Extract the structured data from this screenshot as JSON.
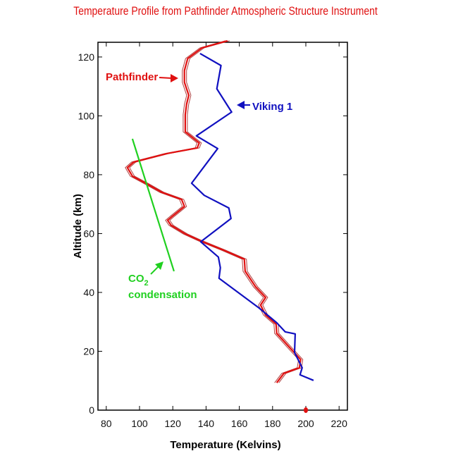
{
  "chart_data": {
    "type": "line",
    "title": "Temperature Profile from Pathfinder Atmospheric Structure Instrument",
    "xlabel": "Temperature (Kelvins)",
    "ylabel": "Altitude (km)",
    "xlim": [
      75,
      225
    ],
    "ylim": [
      0,
      125
    ],
    "xticks": [
      80,
      100,
      120,
      140,
      160,
      180,
      200,
      220
    ],
    "yticks": [
      0,
      20,
      40,
      60,
      80,
      100,
      120
    ],
    "grid": false,
    "series": [
      {
        "name": "Pathfinder",
        "color": "#e01010",
        "points": [
          [
            152.9,
            125.5
          ],
          [
            137.6,
            123.1
          ],
          [
            129,
            119.5
          ],
          [
            127,
            115.4
          ],
          [
            127,
            111.4
          ],
          [
            129.6,
            107
          ],
          [
            128.3,
            104
          ],
          [
            127.5,
            100.4
          ],
          [
            127.5,
            94.6
          ],
          [
            135.9,
            90.8
          ],
          [
            134.7,
            89.1
          ],
          [
            116.4,
            87.2
          ],
          [
            96.5,
            84.3
          ],
          [
            92.7,
            82.4
          ],
          [
            95.7,
            79.5
          ],
          [
            103.7,
            77.1
          ],
          [
            113.5,
            74
          ],
          [
            125.3,
            71.6
          ],
          [
            127,
            69.2
          ],
          [
            119.8,
            65.9
          ],
          [
            116.9,
            64.5
          ],
          [
            119,
            62.8
          ],
          [
            127.5,
            59.9
          ],
          [
            136.8,
            57.5
          ],
          [
            150.3,
            54.4
          ],
          [
            163,
            51.3
          ],
          [
            163.5,
            47.2
          ],
          [
            169.8,
            41.9
          ],
          [
            175.8,
            38.3
          ],
          [
            172.8,
            35.7
          ],
          [
            175.8,
            32.3
          ],
          [
            182.1,
            29.2
          ],
          [
            182.5,
            26.1
          ],
          [
            189.7,
            21.6
          ],
          [
            196.9,
            17.2
          ],
          [
            196.1,
            14.4
          ],
          [
            186.8,
            12.5
          ],
          [
            182.5,
            9.3
          ]
        ]
      },
      {
        "name": "Viking 1",
        "color": "#1010c0",
        "points": [
          [
            136.4,
            121.2
          ],
          [
            149,
            117.1
          ],
          [
            146.5,
            109.2
          ],
          [
            155.4,
            101.3
          ],
          [
            134.2,
            93.2
          ],
          [
            147,
            88.9
          ],
          [
            131.3,
            77.1
          ],
          [
            138.9,
            73
          ],
          [
            153.7,
            68.7
          ],
          [
            155,
            65.1
          ],
          [
            136.8,
            57.2
          ],
          [
            147.4,
            52
          ],
          [
            148.6,
            48.4
          ],
          [
            147.8,
            44.8
          ],
          [
            171.9,
            34.7
          ],
          [
            182.5,
            29.7
          ],
          [
            187.6,
            26.6
          ],
          [
            193.6,
            25.9
          ],
          [
            193.2,
            19.6
          ],
          [
            197.8,
            14.4
          ],
          [
            196.5,
            12
          ],
          [
            204.6,
            10.1
          ]
        ]
      },
      {
        "name": "CO2 condensation",
        "color": "#20d020",
        "points": [
          [
            95.7,
            92.2
          ],
          [
            120.7,
            47.2
          ]
        ]
      }
    ],
    "marker": {
      "x": 200,
      "y": 0,
      "color": "#e01010"
    },
    "annotations": {
      "pathfinder": "Pathfinder",
      "viking": "Viking 1",
      "co2": "CO",
      "co2_sub": "2",
      "condensation": "condensation"
    }
  }
}
